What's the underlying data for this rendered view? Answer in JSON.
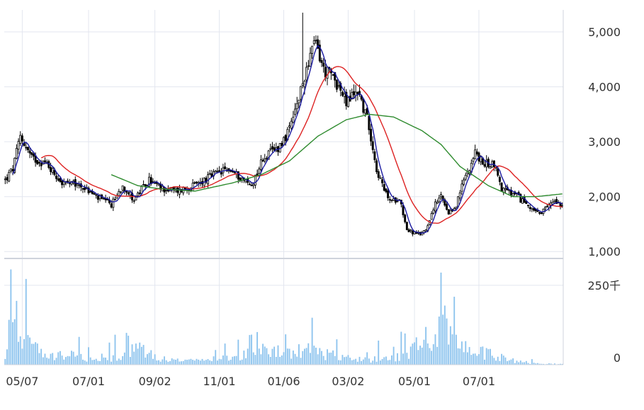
{
  "chart_data": {
    "type": "candlestick",
    "x_tick_labels": [
      "05/07",
      "07/01",
      "09/02",
      "11/01",
      "01/06",
      "03/02",
      "05/01",
      "07/01"
    ],
    "price_axis": {
      "ylim": [
        900,
        5400
      ],
      "tick_values": [
        1000,
        2000,
        3000,
        4000,
        5000
      ],
      "tick_labels": [
        "1,000",
        "2,000",
        "3,000",
        "4,000",
        "5,000"
      ]
    },
    "volume_axis": {
      "ylim": [
        0,
        330
      ],
      "tick_values": [
        0,
        250
      ],
      "tick_labels": [
        "0",
        "250千"
      ]
    },
    "price_keypoints": [
      {
        "i": 0,
        "p": 2300
      },
      {
        "i": 4,
        "p": 2500
      },
      {
        "i": 8,
        "p": 3100
      },
      {
        "i": 14,
        "p": 2700
      },
      {
        "i": 22,
        "p": 2600
      },
      {
        "i": 30,
        "p": 2250
      },
      {
        "i": 40,
        "p": 2200
      },
      {
        "i": 48,
        "p": 2000
      },
      {
        "i": 56,
        "p": 1850
      },
      {
        "i": 62,
        "p": 2200
      },
      {
        "i": 68,
        "p": 1950
      },
      {
        "i": 76,
        "p": 2300
      },
      {
        "i": 82,
        "p": 2150
      },
      {
        "i": 90,
        "p": 2100
      },
      {
        "i": 100,
        "p": 2200
      },
      {
        "i": 110,
        "p": 2400
      },
      {
        "i": 118,
        "p": 2500
      },
      {
        "i": 124,
        "p": 2350
      },
      {
        "i": 130,
        "p": 2200
      },
      {
        "i": 136,
        "p": 2700
      },
      {
        "i": 144,
        "p": 2900
      },
      {
        "i": 150,
        "p": 3200
      },
      {
        "i": 156,
        "p": 3900
      },
      {
        "i": 160,
        "p": 4500
      },
      {
        "i": 164,
        "p": 4800
      },
      {
        "i": 168,
        "p": 4300
      },
      {
        "i": 174,
        "p": 4150
      },
      {
        "i": 180,
        "p": 3700
      },
      {
        "i": 186,
        "p": 3950
      },
      {
        "i": 192,
        "p": 3300
      },
      {
        "i": 196,
        "p": 2500
      },
      {
        "i": 200,
        "p": 2100
      },
      {
        "i": 204,
        "p": 1900
      },
      {
        "i": 208,
        "p": 2000
      },
      {
        "i": 212,
        "p": 1400
      },
      {
        "i": 218,
        "p": 1300
      },
      {
        "i": 222,
        "p": 1400
      },
      {
        "i": 226,
        "p": 1800
      },
      {
        "i": 230,
        "p": 2000
      },
      {
        "i": 234,
        "p": 1650
      },
      {
        "i": 238,
        "p": 1850
      },
      {
        "i": 242,
        "p": 2300
      },
      {
        "i": 248,
        "p": 2800
      },
      {
        "i": 252,
        "p": 2600
      },
      {
        "i": 258,
        "p": 2600
      },
      {
        "i": 262,
        "p": 2150
      },
      {
        "i": 270,
        "p": 2000
      },
      {
        "i": 278,
        "p": 1800
      },
      {
        "i": 282,
        "p": 1650
      },
      {
        "i": 286,
        "p": 1800
      },
      {
        "i": 290,
        "p": 1950
      },
      {
        "i": 294,
        "p": 1850
      }
    ],
    "ma_long_keypoints": [
      {
        "i": 56,
        "p": 2400
      },
      {
        "i": 70,
        "p": 2200
      },
      {
        "i": 80,
        "p": 2150
      },
      {
        "i": 100,
        "p": 2100
      },
      {
        "i": 120,
        "p": 2250
      },
      {
        "i": 135,
        "p": 2400
      },
      {
        "i": 150,
        "p": 2650
      },
      {
        "i": 165,
        "p": 3100
      },
      {
        "i": 180,
        "p": 3400
      },
      {
        "i": 192,
        "p": 3500
      },
      {
        "i": 205,
        "p": 3450
      },
      {
        "i": 220,
        "p": 3200
      },
      {
        "i": 230,
        "p": 2950
      },
      {
        "i": 240,
        "p": 2550
      },
      {
        "i": 255,
        "p": 2200
      },
      {
        "i": 268,
        "p": 2000
      },
      {
        "i": 280,
        "p": 2000
      },
      {
        "i": 294,
        "p": 2050
      }
    ],
    "volume_keypoints": [
      {
        "i": 0,
        "v": 20
      },
      {
        "i": 3,
        "v": 200
      },
      {
        "i": 7,
        "v": 180
      },
      {
        "i": 14,
        "v": 100
      },
      {
        "i": 20,
        "v": 30
      },
      {
        "i": 34,
        "v": 40
      },
      {
        "i": 50,
        "v": 15
      },
      {
        "i": 62,
        "v": 40
      },
      {
        "i": 72,
        "v": 70
      },
      {
        "i": 85,
        "v": 20
      },
      {
        "i": 100,
        "v": 15
      },
      {
        "i": 120,
        "v": 30
      },
      {
        "i": 135,
        "v": 60
      },
      {
        "i": 150,
        "v": 50
      },
      {
        "i": 160,
        "v": 60
      },
      {
        "i": 175,
        "v": 40
      },
      {
        "i": 190,
        "v": 20
      },
      {
        "i": 205,
        "v": 30
      },
      {
        "i": 215,
        "v": 60
      },
      {
        "i": 225,
        "v": 120
      },
      {
        "i": 230,
        "v": 200
      },
      {
        "i": 236,
        "v": 100
      },
      {
        "i": 245,
        "v": 60
      },
      {
        "i": 255,
        "v": 50
      },
      {
        "i": 265,
        "v": 20
      },
      {
        "i": 280,
        "v": 5
      },
      {
        "i": 294,
        "v": 3
      }
    ],
    "colors": {
      "candle": "#000000",
      "ma_short": "#1a1aa0",
      "ma_mid": "#dd2222",
      "ma_long": "#2e8b2e",
      "volume": "#8ec4ee",
      "grid": "#e3e6ef",
      "axis": "#cfd3dc",
      "tick_text": "#333333"
    }
  }
}
